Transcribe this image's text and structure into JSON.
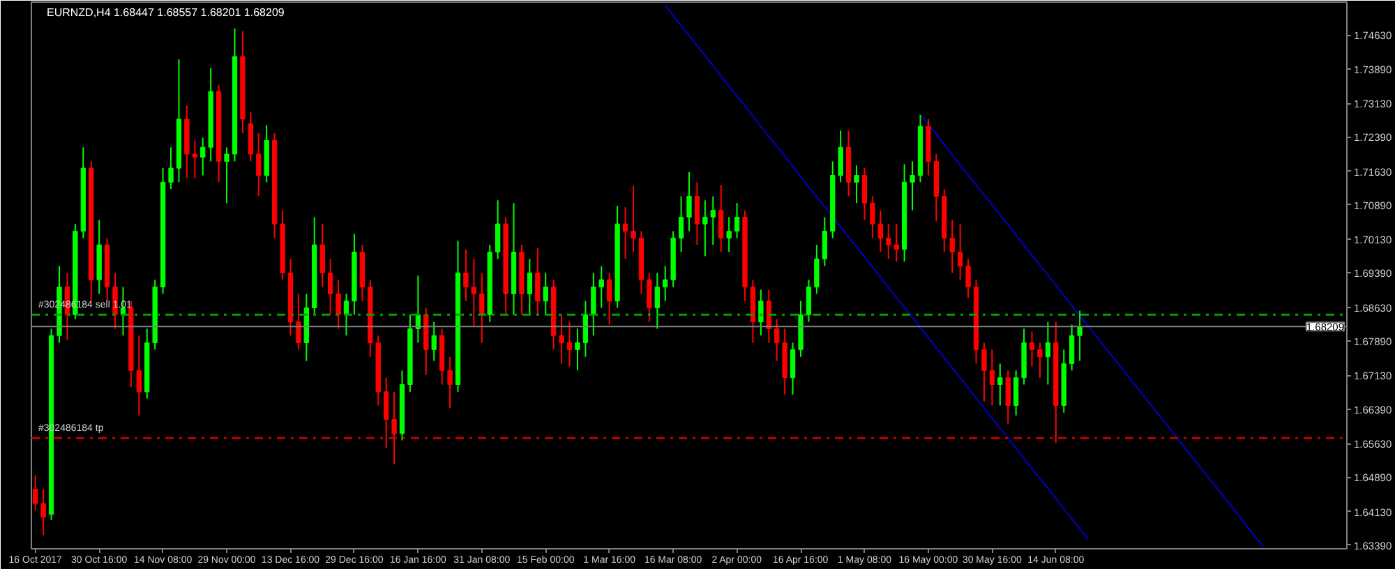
{
  "chart_data": {
    "type": "candlestick",
    "title": "EURNZD,H4 1.68447 1.68557 1.68201 1.68209",
    "categories": [
      "16 Oct 2017",
      null,
      null,
      null,
      null,
      null,
      null,
      null,
      "30 Oct 16:00",
      null,
      null,
      null,
      null,
      null,
      null,
      null,
      "14 Nov 08:00",
      null,
      null,
      null,
      null,
      null,
      null,
      null,
      "29 Nov 00:00",
      null,
      null,
      null,
      null,
      null,
      null,
      null,
      "13 Dec 16:00",
      null,
      null,
      null,
      null,
      null,
      null,
      null,
      "29 Dec 16:00",
      null,
      null,
      null,
      null,
      null,
      null,
      null,
      "16 Jan 16:00",
      null,
      null,
      null,
      null,
      null,
      null,
      null,
      "31 Jan 08:00",
      null,
      null,
      null,
      null,
      null,
      null,
      null,
      "15 Feb 00:00",
      null,
      null,
      null,
      null,
      null,
      null,
      null,
      "1 Mar 16:00",
      null,
      null,
      null,
      null,
      null,
      null,
      null,
      "16 Mar 08:00",
      null,
      null,
      null,
      null,
      null,
      null,
      null,
      "2 Apr 00:00",
      null,
      null,
      null,
      null,
      null,
      null,
      null,
      "16 Apr 16:00",
      null,
      null,
      null,
      null,
      null,
      null,
      null,
      "1 May 08:00",
      null,
      null,
      null,
      null,
      null,
      null,
      null,
      "16 May 00:00",
      null,
      null,
      null,
      null,
      null,
      null,
      null,
      "30 May 16:00",
      null,
      null,
      null,
      null,
      null,
      null,
      null,
      "14 Jun 08:00",
      null,
      null,
      null,
      null,
      null,
      null,
      null,
      null,
      null,
      null,
      null,
      null,
      null,
      null,
      null,
      null,
      null,
      null,
      null,
      null,
      null,
      null,
      null,
      null,
      null,
      null,
      null,
      null,
      null,
      null,
      null,
      null,
      null,
      null,
      null,
      null
    ],
    "ohlc": [
      [
        1.6462,
        1.6493,
        1.6416,
        1.6431
      ],
      [
        1.6431,
        1.6462,
        1.6361,
        1.6401
      ],
      [
        1.6407,
        1.6816,
        1.6394,
        1.6801
      ],
      [
        1.6801,
        1.6954,
        1.6785,
        1.6908
      ],
      [
        1.6908,
        1.6939,
        1.6791,
        1.6847
      ],
      [
        1.6847,
        1.7047,
        1.6837,
        1.7031
      ],
      [
        1.7031,
        1.7216,
        1.7016,
        1.717
      ],
      [
        1.717,
        1.7185,
        1.6877,
        1.6924
      ],
      [
        1.6924,
        1.7056,
        1.6893,
        1.7001
      ],
      [
        1.7001,
        1.7016,
        1.6877,
        1.6908
      ],
      [
        1.6908,
        1.6939,
        1.6816,
        1.6847
      ],
      [
        1.6847,
        1.6908,
        1.6801,
        1.6862
      ],
      [
        1.6862,
        1.6877,
        1.6687,
        1.6724
      ],
      [
        1.6724,
        1.6801,
        1.6625,
        1.6677
      ],
      [
        1.6677,
        1.6816,
        1.6662,
        1.6785
      ],
      [
        1.6785,
        1.6924,
        1.677,
        1.6908
      ],
      [
        1.6908,
        1.717,
        1.6893,
        1.7139
      ],
      [
        1.7139,
        1.7216,
        1.7124,
        1.717
      ],
      [
        1.717,
        1.741,
        1.7139,
        1.7278
      ],
      [
        1.7278,
        1.7308,
        1.7148,
        1.7201
      ],
      [
        1.7201,
        1.7231,
        1.7148,
        1.7194
      ],
      [
        1.7194,
        1.7237,
        1.7154,
        1.7216
      ],
      [
        1.7216,
        1.7391,
        1.7185,
        1.7339
      ],
      [
        1.7339,
        1.7354,
        1.7139,
        1.7185
      ],
      [
        1.7185,
        1.7216,
        1.7093,
        1.7201
      ],
      [
        1.7201,
        1.7478,
        1.7185,
        1.7416
      ],
      [
        1.7416,
        1.7472,
        1.7247,
        1.7278
      ],
      [
        1.7268,
        1.7293,
        1.7185,
        1.7201
      ],
      [
        1.7201,
        1.7247,
        1.7108,
        1.7154
      ],
      [
        1.7154,
        1.7265,
        1.7139,
        1.7231
      ],
      [
        1.7231,
        1.7247,
        1.7016,
        1.7047
      ],
      [
        1.7047,
        1.7077,
        1.6924,
        1.6939
      ],
      [
        1.6939,
        1.697,
        1.6801,
        1.6831
      ],
      [
        1.6831,
        1.6893,
        1.677,
        1.6785
      ],
      [
        1.6785,
        1.6893,
        1.6745,
        1.6862
      ],
      [
        1.6862,
        1.7062,
        1.6847,
        1.7001
      ],
      [
        1.7001,
        1.7047,
        1.6908,
        1.6939
      ],
      [
        1.6939,
        1.697,
        1.6847,
        1.6893
      ],
      [
        1.6893,
        1.6924,
        1.6816,
        1.6847
      ],
      [
        1.6847,
        1.6893,
        1.6801,
        1.6877
      ],
      [
        1.6877,
        1.7025,
        1.6847,
        1.6985
      ],
      [
        1.6985,
        1.7001,
        1.6877,
        1.6908
      ],
      [
        1.6908,
        1.6924,
        1.6754,
        1.6785
      ],
      [
        1.6785,
        1.6801,
        1.6647,
        1.6677
      ],
      [
        1.6677,
        1.6708,
        1.6554,
        1.6616
      ],
      [
        1.6616,
        1.6677,
        1.6517,
        1.6585
      ],
      [
        1.6585,
        1.6724,
        1.657,
        1.6693
      ],
      [
        1.6693,
        1.6847,
        1.6677,
        1.6816
      ],
      [
        1.6816,
        1.6933,
        1.6785,
        1.6847
      ],
      [
        1.6847,
        1.6862,
        1.6714,
        1.677
      ],
      [
        1.677,
        1.6831,
        1.6745,
        1.6801
      ],
      [
        1.6801,
        1.6816,
        1.6693,
        1.6724
      ],
      [
        1.6724,
        1.6754,
        1.6641,
        1.6693
      ],
      [
        1.6693,
        1.701,
        1.6677,
        1.6939
      ],
      [
        1.6939,
        1.6991,
        1.6877,
        1.6908
      ],
      [
        1.6908,
        1.697,
        1.6822,
        1.6893
      ],
      [
        1.6893,
        1.6939,
        1.6785,
        1.6847
      ],
      [
        1.6847,
        1.7001,
        1.6831,
        1.6985
      ],
      [
        1.6985,
        1.7099,
        1.697,
        1.7047
      ],
      [
        1.7047,
        1.7062,
        1.6847,
        1.6893
      ],
      [
        1.6893,
        1.7093,
        1.6847,
        1.6985
      ],
      [
        1.6985,
        1.7001,
        1.6847,
        1.6893
      ],
      [
        1.6893,
        1.697,
        1.6847,
        1.6939
      ],
      [
        1.6939,
        1.6994,
        1.6847,
        1.6877
      ],
      [
        1.6877,
        1.6939,
        1.6847,
        1.6908
      ],
      [
        1.6908,
        1.6924,
        1.677,
        1.6801
      ],
      [
        1.6801,
        1.6847,
        1.6739,
        1.6785
      ],
      [
        1.6785,
        1.6831,
        1.6733,
        1.677
      ],
      [
        1.677,
        1.6816,
        1.6724,
        1.6785
      ],
      [
        1.6785,
        1.6877,
        1.6754,
        1.6847
      ],
      [
        1.6847,
        1.6939,
        1.6801,
        1.6908
      ],
      [
        1.6908,
        1.6954,
        1.6862,
        1.6924
      ],
      [
        1.6924,
        1.6939,
        1.6825,
        1.6877
      ],
      [
        1.6877,
        1.7087,
        1.6862,
        1.7047
      ],
      [
        1.7047,
        1.7084,
        1.697,
        1.7031
      ],
      [
        1.7031,
        1.713,
        1.6985,
        1.7016
      ],
      [
        1.7016,
        1.7031,
        1.6893,
        1.6924
      ],
      [
        1.6924,
        1.6939,
        1.6831,
        1.6862
      ],
      [
        1.6862,
        1.6939,
        1.6816,
        1.6908
      ],
      [
        1.6908,
        1.6954,
        1.6877,
        1.6924
      ],
      [
        1.6924,
        1.7031,
        1.6908,
        1.7016
      ],
      [
        1.7016,
        1.7108,
        1.6985,
        1.7062
      ],
      [
        1.7062,
        1.7161,
        1.7031,
        1.7108
      ],
      [
        1.7108,
        1.7139,
        1.7001,
        1.7047
      ],
      [
        1.7047,
        1.7099,
        1.6976,
        1.7062
      ],
      [
        1.7062,
        1.7108,
        1.7001,
        1.7077
      ],
      [
        1.7077,
        1.7133,
        1.6985,
        1.7016
      ],
      [
        1.7016,
        1.7062,
        1.6985,
        1.7031
      ],
      [
        1.7031,
        1.7093,
        1.7016,
        1.7062
      ],
      [
        1.7062,
        1.7077,
        1.6877,
        1.6908
      ],
      [
        1.6908,
        1.6924,
        1.6785,
        1.6831
      ],
      [
        1.6831,
        1.6902,
        1.6801,
        1.6877
      ],
      [
        1.6877,
        1.6902,
        1.6785,
        1.6816
      ],
      [
        1.6816,
        1.6837,
        1.6745,
        1.6785
      ],
      [
        1.6785,
        1.6816,
        1.6671,
        1.6708
      ],
      [
        1.6708,
        1.6785,
        1.6671,
        1.677
      ],
      [
        1.677,
        1.6877,
        1.6754,
        1.6847
      ],
      [
        1.6847,
        1.6924,
        1.6831,
        1.6908
      ],
      [
        1.6908,
        1.7001,
        1.6893,
        1.697
      ],
      [
        1.697,
        1.7062,
        1.6954,
        1.7031
      ],
      [
        1.7031,
        1.7185,
        1.7016,
        1.7154
      ],
      [
        1.7154,
        1.7253,
        1.7139,
        1.7216
      ],
      [
        1.7216,
        1.7253,
        1.7108,
        1.7139
      ],
      [
        1.7139,
        1.7176,
        1.7093,
        1.7154
      ],
      [
        1.7154,
        1.717,
        1.7056,
        1.7093
      ],
      [
        1.7093,
        1.7108,
        1.7016,
        1.7047
      ],
      [
        1.7047,
        1.7077,
        1.6985,
        1.7016
      ],
      [
        1.7016,
        1.7047,
        1.697,
        1.7001
      ],
      [
        1.7001,
        1.7047,
        1.6964,
        1.6991
      ],
      [
        1.6991,
        1.7179,
        1.6964,
        1.7139
      ],
      [
        1.7139,
        1.7185,
        1.7077,
        1.7154
      ],
      [
        1.7154,
        1.7287,
        1.7139,
        1.7262
      ],
      [
        1.7262,
        1.7278,
        1.7154,
        1.7185
      ],
      [
        1.7185,
        1.7201,
        1.7053,
        1.7108
      ],
      [
        1.7108,
        1.7124,
        1.6985,
        1.7016
      ],
      [
        1.7016,
        1.7056,
        1.6939,
        1.6985
      ],
      [
        1.6985,
        1.7047,
        1.6924,
        1.6954
      ],
      [
        1.6954,
        1.697,
        1.6884,
        1.6908
      ],
      [
        1.6908,
        1.6924,
        1.6739,
        1.677
      ],
      [
        1.677,
        1.6785,
        1.6656,
        1.6724
      ],
      [
        1.6724,
        1.677,
        1.6647,
        1.6693
      ],
      [
        1.6693,
        1.6739,
        1.6647,
        1.6708
      ],
      [
        1.6708,
        1.6724,
        1.6607,
        1.6647
      ],
      [
        1.6647,
        1.6724,
        1.6625,
        1.6708
      ],
      [
        1.6708,
        1.6816,
        1.6693,
        1.6785
      ],
      [
        1.6785,
        1.681,
        1.6733,
        1.677
      ],
      [
        1.677,
        1.6785,
        1.6708,
        1.6754
      ],
      [
        1.6754,
        1.6831,
        1.6693,
        1.6785
      ],
      [
        1.6785,
        1.6831,
        1.6564,
        1.6647
      ],
      [
        1.6647,
        1.677,
        1.6631,
        1.6739
      ],
      [
        1.6739,
        1.6825,
        1.6724,
        1.6801
      ],
      [
        1.6801,
        1.6856,
        1.6745,
        1.68209
      ],
      null,
      null,
      null,
      null,
      null,
      null,
      null,
      null,
      null,
      null,
      null,
      null,
      null,
      null,
      null,
      null,
      null,
      null,
      null,
      null,
      null,
      null,
      null,
      null,
      null,
      null,
      null,
      null,
      null,
      null,
      null,
      null,
      null
    ],
    "colors": [
      "#ff0000",
      "#ff0000",
      "#00ff00",
      "#00ff00",
      "#ff0000",
      "#00ff00",
      "#00ff00",
      "#ff0000",
      "#00ff00",
      "#ff0000",
      "#ff0000",
      "#00ff00",
      "#ff0000",
      "#ff0000",
      "#00ff00",
      "#00ff00",
      "#00ff00",
      "#00ff00",
      "#00ff00",
      "#ff0000",
      "#ff0000",
      "#00ff00",
      "#00ff00",
      "#ff0000",
      "#00ff00",
      "#00ff00",
      "#ff0000",
      "#ff0000",
      "#ff0000",
      "#00ff00",
      "#ff0000",
      "#ff0000",
      "#ff0000",
      "#ff0000",
      "#00ff00",
      "#00ff00",
      "#ff0000",
      "#ff0000",
      "#ff0000",
      "#00ff00",
      "#00ff00",
      "#ff0000",
      "#ff0000",
      "#ff0000",
      "#ff0000",
      "#ff0000",
      "#00ff00",
      "#00ff00",
      "#00ff00",
      "#ff0000",
      "#00ff00",
      "#ff0000",
      "#ff0000",
      "#00ff00",
      "#ff0000",
      "#ff0000",
      "#ff0000",
      "#00ff00",
      "#00ff00",
      "#ff0000",
      "#00ff00",
      "#ff0000",
      "#00ff00",
      "#ff0000",
      "#00ff00",
      "#ff0000",
      "#ff0000",
      "#ff0000",
      "#00ff00",
      "#00ff00",
      "#00ff00",
      "#00ff00",
      "#ff0000",
      "#00ff00",
      "#ff0000",
      "#ff0000",
      "#ff0000",
      "#ff0000",
      "#00ff00",
      "#00ff00",
      "#00ff00",
      "#00ff00",
      "#00ff00",
      "#ff0000",
      "#00ff00",
      "#00ff00",
      "#ff0000",
      "#00ff00",
      "#00ff00",
      "#ff0000",
      "#ff0000",
      "#00ff00",
      "#ff0000",
      "#ff0000",
      "#ff0000",
      "#00ff00",
      "#00ff00",
      "#00ff00",
      "#00ff00",
      "#00ff00",
      "#00ff00",
      "#00ff00",
      "#ff0000",
      "#00ff00",
      "#ff0000",
      "#ff0000",
      "#ff0000",
      "#ff0000",
      "#ff0000",
      "#00ff00",
      "#00ff00",
      "#00ff00",
      "#ff0000",
      "#ff0000",
      "#ff0000",
      "#ff0000",
      "#ff0000",
      "#ff0000",
      "#ff0000",
      "#ff0000",
      "#ff0000",
      "#00ff00",
      "#ff0000",
      "#00ff00",
      "#00ff00",
      "#ff0000",
      "#ff0000",
      "#00ff00",
      "#ff0000",
      "#00ff00",
      "#00ff00",
      "#00ff00",
      null,
      null,
      null,
      null,
      null,
      null,
      null,
      null,
      null,
      null,
      null,
      null,
      null,
      null,
      null,
      null,
      null,
      null,
      null,
      null,
      null,
      null,
      null,
      null,
      null,
      null,
      null,
      null,
      null,
      null,
      null,
      null,
      null
    ],
    "series": [
      {
        "type": "line",
        "color": "#0000cc",
        "values": [
          null,
          null,
          null,
          null,
          null,
          null,
          null,
          null,
          null,
          null,
          null,
          null,
          null,
          null,
          null,
          null,
          null,
          null,
          null,
          null,
          null,
          null,
          null,
          null,
          null,
          null,
          null,
          null,
          null,
          null,
          null,
          null,
          null,
          null,
          null,
          null,
          null,
          null,
          null,
          null,
          null,
          null,
          null,
          null,
          null,
          null,
          null,
          null,
          null,
          null,
          null,
          null,
          null,
          null,
          null,
          null,
          null,
          null,
          null,
          null,
          null,
          null,
          null,
          null,
          null,
          null,
          null,
          null,
          null,
          null,
          null,
          null,
          null,
          null,
          null,
          null,
          null,
          null,
          null,
          1.7529,
          1.7506,
          1.7484,
          1.7462,
          1.744,
          1.7418,
          1.7395,
          1.7373,
          1.7351,
          1.7329,
          1.7307,
          1.7285,
          1.7262,
          1.724,
          1.7218,
          1.7196,
          1.7174,
          1.7151,
          1.7129,
          1.7107,
          1.7085,
          1.7063,
          1.704,
          1.7018,
          1.6996,
          1.6974,
          1.6952,
          1.693,
          1.6907,
          1.6885,
          1.6863,
          1.6841,
          1.6819,
          1.6796,
          1.6774,
          1.6752,
          1.673,
          1.6708,
          1.6686,
          1.6663,
          1.6641,
          1.6619,
          1.6597,
          1.6575,
          1.6552,
          1.653,
          1.6508,
          1.6486,
          1.6464,
          1.6442,
          1.6419,
          1.6397,
          1.6375,
          1.6353,
          null,
          null,
          null,
          null,
          null,
          null,
          null,
          null,
          null,
          null,
          null,
          null,
          null,
          null,
          null,
          null,
          null,
          null,
          null,
          null,
          null,
          null,
          null,
          null,
          null,
          null,
          null,
          null,
          null,
          null,
          null,
          null
        ]
      },
      {
        "type": "line",
        "color": "#0000cc",
        "values": [
          null,
          null,
          null,
          null,
          null,
          null,
          null,
          null,
          null,
          null,
          null,
          null,
          null,
          null,
          null,
          null,
          null,
          null,
          null,
          null,
          null,
          null,
          null,
          null,
          null,
          null,
          null,
          null,
          null,
          null,
          null,
          null,
          null,
          null,
          null,
          null,
          null,
          null,
          null,
          null,
          null,
          null,
          null,
          null,
          null,
          null,
          null,
          null,
          null,
          null,
          null,
          null,
          null,
          null,
          null,
          null,
          null,
          null,
          null,
          null,
          null,
          null,
          null,
          null,
          null,
          null,
          null,
          null,
          null,
          null,
          null,
          null,
          null,
          null,
          null,
          null,
          null,
          null,
          null,
          null,
          null,
          null,
          null,
          null,
          null,
          null,
          null,
          null,
          null,
          null,
          null,
          null,
          null,
          null,
          null,
          null,
          null,
          null,
          null,
          null,
          null,
          null,
          null,
          null,
          null,
          null,
          null,
          null,
          null,
          null,
          null,
          1.7288,
          1.7266,
          1.7244,
          1.7222,
          1.7199,
          1.7177,
          1.7155,
          1.7133,
          1.7111,
          1.7089,
          1.7067,
          1.7045,
          1.7022,
          1.7,
          1.6978,
          1.6956,
          1.6934,
          1.6912,
          1.689,
          1.6867,
          1.6845,
          1.6823,
          1.6801,
          1.6779,
          1.6757,
          1.6735,
          1.6712,
          1.669,
          1.6668,
          1.6646,
          1.6624,
          1.6602,
          1.658,
          1.6558,
          1.6535,
          1.6513,
          1.6491,
          1.6469,
          1.6447,
          1.6425,
          1.6403,
          1.638,
          1.6358,
          1.6336,
          null,
          null,
          null,
          null,
          null,
          null,
          null,
          null,
          null,
          null
        ]
      }
    ],
    "ref_lines": [
      {
        "axis": "y",
        "value": 1.6847,
        "label": "#302486184 sell 1.01",
        "color": "#00a000",
        "line_style": "dashdot"
      },
      {
        "axis": "y",
        "value": 1.6575,
        "label": "#302486184 tp",
        "color": "#c00000",
        "line_style": "dashdot"
      },
      {
        "axis": "y",
        "value": 1.68209,
        "label": "1.68209",
        "color": "#808080",
        "line_style": "solid"
      }
    ],
    "ylim": [
      1.6331,
      1.7536
    ],
    "yticks": [
      {
        "value": 1.7463,
        "label": "1.74630"
      },
      {
        "value": 1.7389,
        "label": "1.73890"
      },
      {
        "value": 1.7313,
        "label": "1.73130"
      },
      {
        "value": 1.7239,
        "label": "1.72390"
      },
      {
        "value": 1.7163,
        "label": "1.71630"
      },
      {
        "value": 1.7089,
        "label": "1.70890"
      },
      {
        "value": 1.7013,
        "label": "1.70130"
      },
      {
        "value": 1.6939,
        "label": "1.69390"
      },
      {
        "value": 1.6863,
        "label": "1.68630"
      },
      {
        "value": 1.6789,
        "label": "1.67890"
      },
      {
        "value": 1.6713,
        "label": "1.67130"
      },
      {
        "value": 1.6639,
        "label": "1.66390"
      },
      {
        "value": 1.6563,
        "label": "1.65630"
      },
      {
        "value": 1.6489,
        "label": "1.64890"
      },
      {
        "value": 1.6413,
        "label": "1.64130"
      },
      {
        "value": 1.6339,
        "label": "1.63390"
      }
    ],
    "grid": false
  }
}
